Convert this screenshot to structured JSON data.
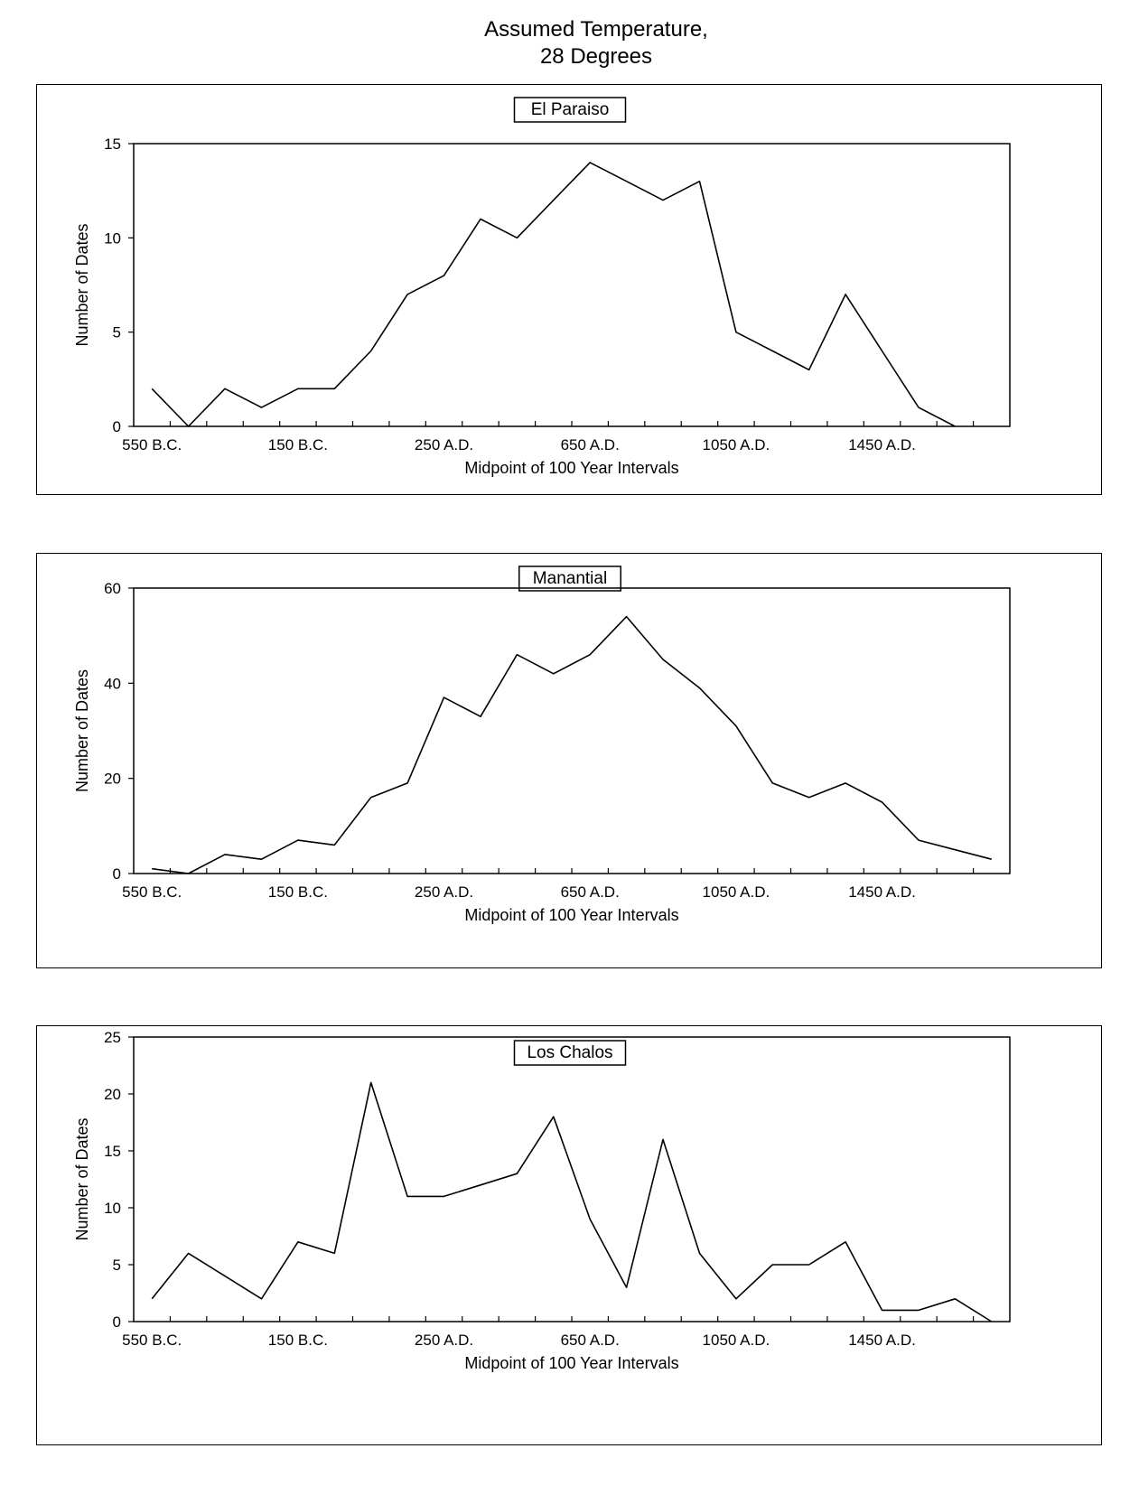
{
  "page": {
    "title_line1": "Assumed Temperature,",
    "title_line2": "28 Degrees"
  },
  "chart_data": [
    {
      "type": "line",
      "title": "El Paraiso",
      "xlabel": "Midpoint of 100 Year Intervals",
      "ylabel": "Number of Dates",
      "ylim": [
        0,
        15
      ],
      "yticks": [
        0,
        5,
        10,
        15
      ],
      "xtick_labels": [
        "550 B.C.",
        "150 B.C.",
        "250 A.D.",
        "650 A.D.",
        "1050 A.D.",
        "1450 A.D."
      ],
      "x": [
        -550,
        -450,
        -350,
        -250,
        -150,
        -50,
        50,
        150,
        250,
        350,
        450,
        550,
        650,
        750,
        850,
        950,
        1050,
        1150,
        1250,
        1350,
        1450,
        1550,
        1650,
        1750
      ],
      "series": [
        {
          "values": [
            2,
            0,
            2,
            1,
            2,
            2,
            4,
            7,
            8,
            11,
            10,
            12,
            14,
            13,
            12,
            13,
            5,
            4,
            3,
            7,
            4,
            1,
            0,
            null
          ]
        }
      ]
    },
    {
      "type": "line",
      "title": "Manantial",
      "xlabel": "Midpoint of 100 Year Intervals",
      "ylabel": "Number of Dates",
      "ylim": [
        0,
        60
      ],
      "yticks": [
        0,
        20,
        40,
        60
      ],
      "xtick_labels": [
        "550 B.C.",
        "150 B.C.",
        "250 A.D.",
        "650 A.D.",
        "1050 A.D.",
        "1450 A.D."
      ],
      "x": [
        -550,
        -450,
        -350,
        -250,
        -150,
        -50,
        50,
        150,
        250,
        350,
        450,
        550,
        650,
        750,
        850,
        950,
        1050,
        1150,
        1250,
        1350,
        1450,
        1550,
        1650,
        1750
      ],
      "series": [
        {
          "values": [
            1,
            0,
            4,
            3,
            7,
            6,
            16,
            19,
            37,
            33,
            46,
            42,
            46,
            54,
            45,
            39,
            31,
            19,
            16,
            19,
            15,
            7,
            5,
            3
          ]
        }
      ]
    },
    {
      "type": "line",
      "title": "Los Chalos",
      "xlabel": "Midpoint of 100 Year Intervals",
      "ylabel": "Number of Dates",
      "ylim": [
        0,
        25
      ],
      "yticks": [
        0,
        5,
        10,
        15,
        20,
        25
      ],
      "xtick_labels": [
        "550 B.C.",
        "150 B.C.",
        "250 A.D.",
        "650 A.D.",
        "1050 A.D.",
        "1450 A.D."
      ],
      "x": [
        -550,
        -450,
        -350,
        -250,
        -150,
        -50,
        50,
        150,
        250,
        350,
        450,
        550,
        650,
        750,
        850,
        950,
        1050,
        1150,
        1250,
        1350,
        1450,
        1550,
        1650,
        1750
      ],
      "series": [
        {
          "values": [
            2,
            6,
            4,
            2,
            7,
            6,
            21,
            11,
            11,
            12,
            13,
            18,
            9,
            3,
            16,
            6,
            2,
            5,
            5,
            7,
            1,
            1,
            2,
            0
          ]
        }
      ]
    }
  ]
}
